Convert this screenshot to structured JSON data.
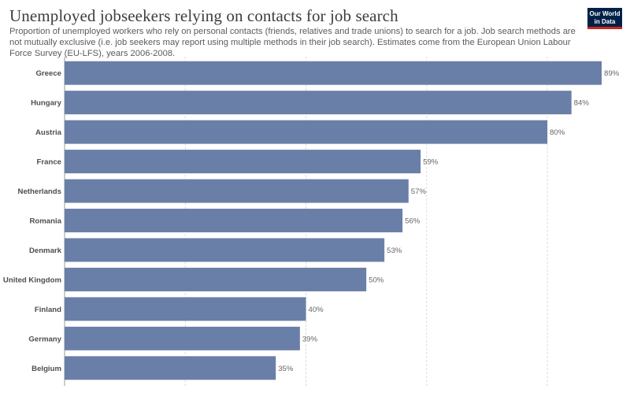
{
  "header": {
    "title": "Unemployed jobseekers relying on contacts for job search",
    "subtitle": "Proportion of unemployed workers who rely on personal contacts (friends, relatives and trade unions) to search for a job. Job search methods are not mutually exclusive (i.e. job seekers may report using multiple methods in their job search). Estimates come from the European Union Labour Force Survey (EU-LFS), years 2006-2008."
  },
  "logo": {
    "line1": "Our World",
    "line2": "in Data",
    "bg_color": "#002147",
    "accent_color": "#ce261e"
  },
  "chart_data": {
    "type": "bar",
    "orientation": "horizontal",
    "categories": [
      "Greece",
      "Hungary",
      "Austria",
      "France",
      "Netherlands",
      "Romania",
      "Denmark",
      "United Kingdom",
      "Finland",
      "Germany",
      "Belgium"
    ],
    "values": [
      89,
      84,
      80,
      59,
      57,
      56,
      53,
      50,
      40,
      39,
      35
    ],
    "value_labels": [
      "89%",
      "84%",
      "80%",
      "59%",
      "57%",
      "56%",
      "53%",
      "50%",
      "40%",
      "39%",
      "35%"
    ],
    "unit": "%",
    "xlim": [
      0,
      89
    ],
    "grid": true,
    "bar_color": "#6a7fa7"
  }
}
